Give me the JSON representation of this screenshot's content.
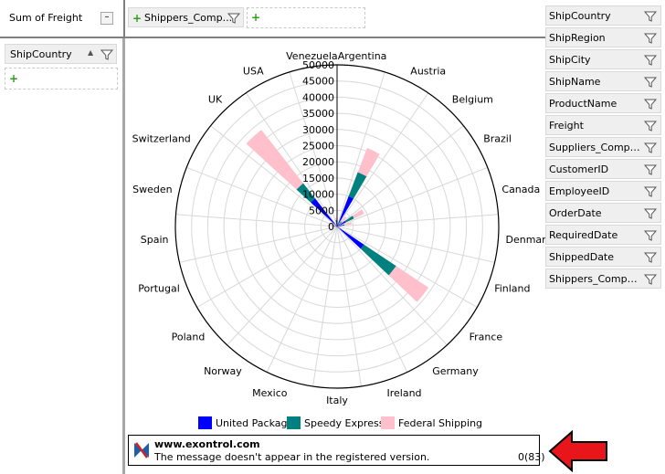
{
  "value_area": {
    "sum_label": "Sum of Freight",
    "collapse_glyph": "–"
  },
  "column_area": {
    "field": "Shippers_Comp..."
  },
  "row_area": {
    "field": "ShipCountry",
    "sort_glyph": "▲"
  },
  "field_list": [
    "ShipCountry",
    "ShipRegion",
    "ShipCity",
    "ShipName",
    "ProductName",
    "Freight",
    "Suppliers_Compan...",
    "CustomerID",
    "EmployeeID",
    "OrderDate",
    "RequiredDate",
    "ShippedDate",
    "Shippers_Compan..."
  ],
  "chart_data": {
    "type": "polar-stacked-bar",
    "categories": [
      "Argentina",
      "Austria",
      "Belgium",
      "Brazil",
      "Canada",
      "Denmark",
      "Finland",
      "France",
      "Germany",
      "Ireland",
      "Italy",
      "Mexico",
      "Norway",
      "Poland",
      "Portugal",
      "Spain",
      "Sweden",
      "Switzerland",
      "UK",
      "USA",
      "Venezuela"
    ],
    "radial_ticks": [
      "0",
      "5000",
      "10000",
      "15000",
      "20000",
      "25000",
      "30000",
      "35000",
      "40000",
      "45000",
      "50000"
    ],
    "rmax": 50000,
    "series": [
      {
        "name": "United Package",
        "color": "#0000ff",
        "values": [
          200,
          10000,
          1200,
          3000,
          1500,
          300,
          300,
          10000,
          300,
          200,
          100,
          300,
          50,
          0,
          0,
          100,
          800,
          0,
          11000,
          0,
          1200
        ]
      },
      {
        "name": "Speedy Express",
        "color": "#00807f",
        "values": [
          200,
          8000,
          800,
          2800,
          800,
          200,
          300,
          12000,
          300,
          200,
          100,
          300,
          50,
          0,
          0,
          200,
          700,
          0,
          6000,
          0,
          800
        ]
      },
      {
        "name": "Federal Shipping",
        "color": "#ffc0cb",
        "values": [
          200,
          8000,
          2000,
          3500,
          2300,
          300,
          400,
          12000,
          300,
          200,
          100,
          300,
          50,
          0,
          0,
          300,
          1000,
          0,
          21000,
          0,
          700
        ]
      }
    ]
  },
  "message": {
    "url": "www.exontrol.com",
    "text": "The message doesn't appear in the registered version.",
    "counter": "0(83)"
  },
  "colors": {
    "arrow": "#e8151b",
    "grid": "#d8d8d8"
  }
}
